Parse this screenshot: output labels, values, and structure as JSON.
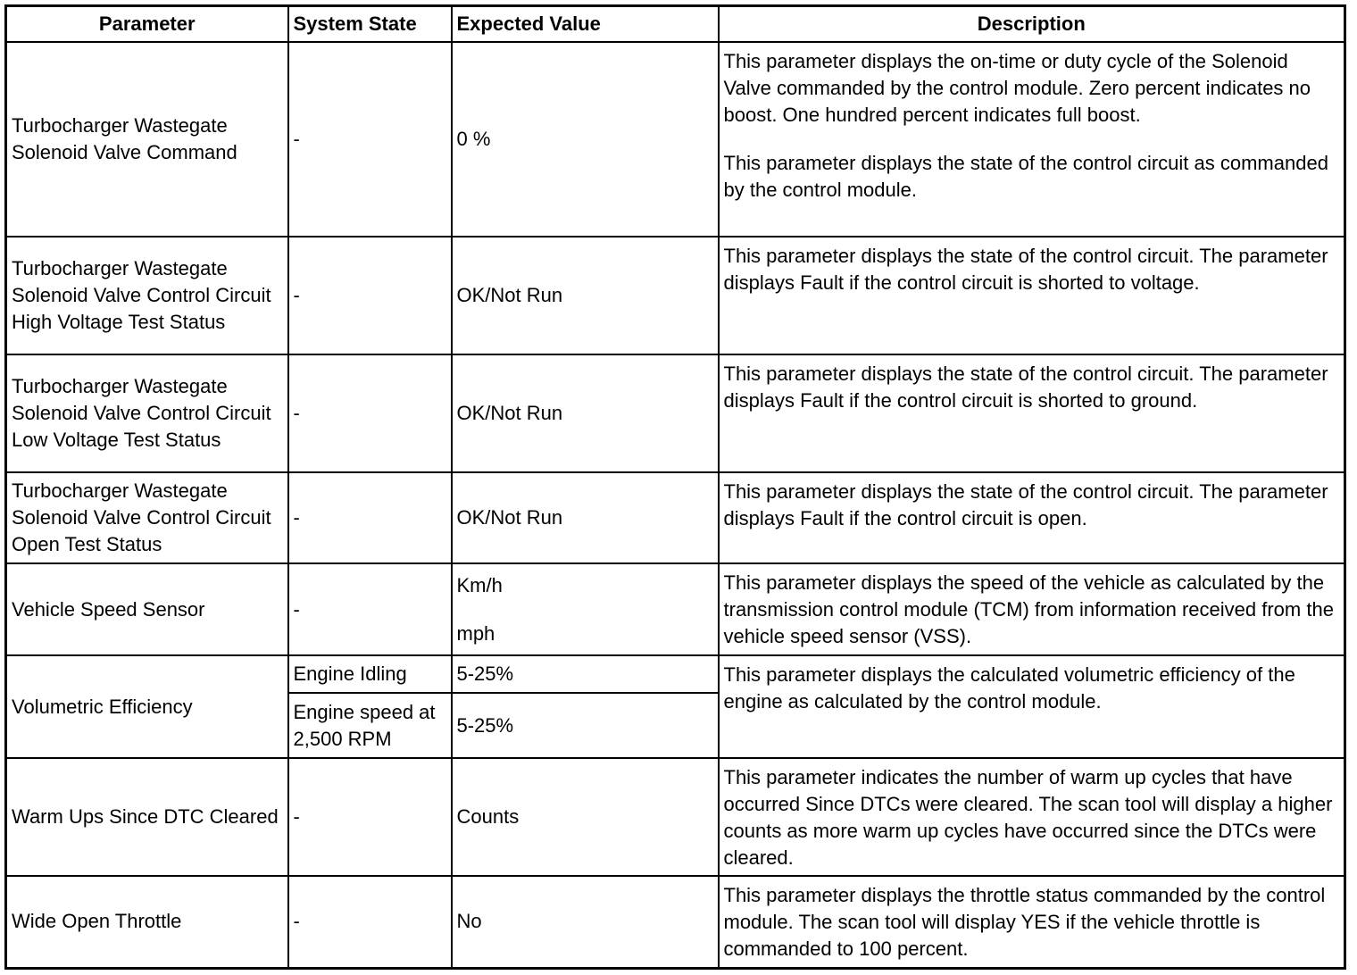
{
  "headers": {
    "parameter": "Parameter",
    "system_state": "System State",
    "expected_value": "Expected Value",
    "description": "Description"
  },
  "rows": [
    {
      "parameter": "Turbocharger Wastegate Solenoid Valve Command",
      "system_state": "-",
      "expected_value": "0 %",
      "description": "This parameter displays the on-time or duty cycle of the Solenoid Valve commanded by the control module. Zero percent indicates no boost. One hundred percent indicates full boost.",
      "description2": "This parameter displays the state of the control circuit as commanded by the control module."
    },
    {
      "parameter": "Turbocharger Wastegate Solenoid Valve Control Circuit High Voltage Test Status",
      "system_state": "-",
      "expected_value": "OK/Not Run",
      "description": "This parameter displays the state of the control circuit. The parameter displays Fault if the control circuit is shorted to voltage."
    },
    {
      "parameter": "Turbocharger Wastegate Solenoid Valve Control Circuit Low Voltage Test Status",
      "system_state": "-",
      "expected_value": "OK/Not Run",
      "description": "This parameter displays the state of the control circuit. The parameter displays Fault if the control circuit is shorted to ground."
    },
    {
      "parameter": "Turbocharger Wastegate Solenoid Valve Control Circuit Open Test Status",
      "system_state": "-",
      "expected_value": "OK/Not Run",
      "description": "This parameter displays the state of the control circuit. The parameter displays Fault if the control circuit is open."
    },
    {
      "parameter": "Vehicle Speed Sensor",
      "system_state": "-",
      "expected_value": "Km/h",
      "expected_value2": "mph",
      "description": "This parameter displays the speed of the vehicle as calculated by the transmission control module (TCM) from information received from the vehicle speed sensor (VSS)."
    },
    {
      "parameter": "Volumetric Efficiency",
      "states": [
        {
          "system_state": "Engine Idling",
          "expected_value": "5-25%"
        },
        {
          "system_state": "Engine speed at 2,500 RPM",
          "expected_value": "5-25%"
        }
      ],
      "description": "This parameter displays the calculated volumetric efficiency of the engine as calculated by the control module."
    },
    {
      "parameter": "Warm Ups Since DTC Cleared",
      "system_state": "-",
      "expected_value": "Counts",
      "description": "This parameter indicates the number of warm up cycles that have occurred Since DTCs were cleared. The scan tool will display a higher counts as more warm up cycles have occurred since the DTCs were cleared."
    },
    {
      "parameter": "Wide Open Throttle",
      "system_state": "-",
      "expected_value": "No",
      "description": "This parameter displays the throttle status commanded by the control module. The scan tool will display YES if the vehicle throttle is commanded to 100 percent."
    }
  ]
}
